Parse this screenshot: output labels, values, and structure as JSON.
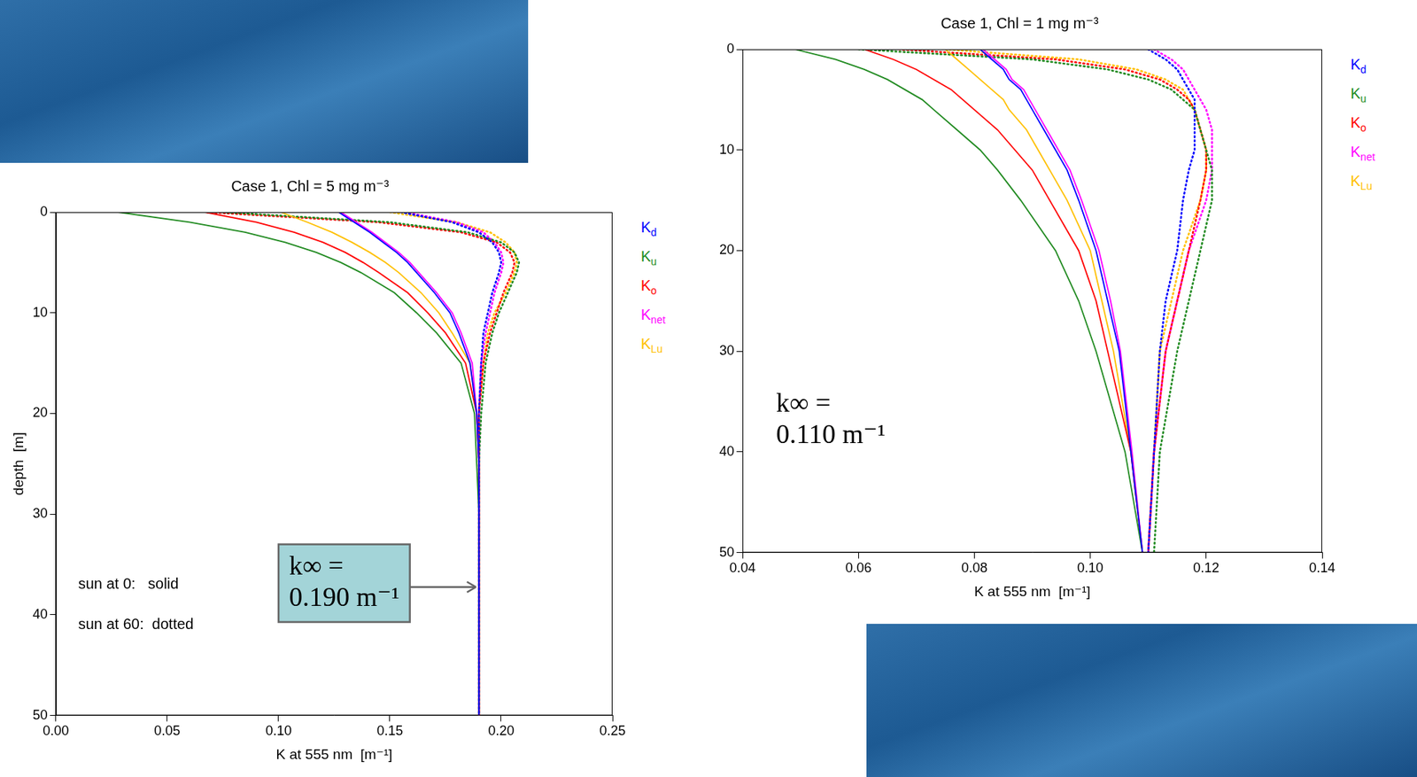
{
  "chart_data": [
    {
      "type": "line",
      "title": "Case 1, Chl = 5 mg m⁻³",
      "x_label": "K at 555 nm  [m⁻¹]",
      "y_label": "depth  [m]",
      "legend": "right",
      "grid": false,
      "legend_note": [
        "sun at 0:   solid",
        "sun at 60:  dotted"
      ],
      "annotation": "k∞ = 0.190 m⁻¹",
      "xlim": [
        0,
        0.25
      ],
      "xticks": [
        {
          "value": 0,
          "label": "0.00"
        },
        {
          "value": 0.05,
          "label": "0.05"
        },
        {
          "value": 0.1,
          "label": "0.10"
        },
        {
          "value": 0.15,
          "label": "0.15"
        },
        {
          "value": 0.2,
          "label": "0.20"
        },
        {
          "value": 0.25,
          "label": "0.25"
        }
      ],
      "ylim": [
        0,
        50
      ],
      "yticks": [
        0,
        10,
        20,
        30,
        40,
        50
      ],
      "y": [
        0,
        1,
        2,
        3,
        4,
        5,
        6,
        8,
        10,
        12,
        15,
        20,
        25,
        30,
        40,
        50
      ],
      "series": [
        {
          "name": "Kd",
          "color": "#0000ff",
          "line_style": "solid",
          "values": [
            0.127,
            0.134,
            0.141,
            0.147,
            0.153,
            0.158,
            0.162,
            0.17,
            0.177,
            0.181,
            0.186,
            0.189,
            0.19,
            0.19,
            0.19,
            0.19
          ]
        },
        {
          "name": "Ku",
          "color": "#228b22",
          "line_style": "solid",
          "values": [
            0.028,
            0.06,
            0.085,
            0.103,
            0.117,
            0.128,
            0.137,
            0.152,
            0.162,
            0.171,
            0.182,
            0.188,
            0.189,
            0.19,
            0.19,
            0.19
          ]
        },
        {
          "name": "Ko",
          "color": "#ff0000",
          "line_style": "solid",
          "values": [
            0.067,
            0.09,
            0.107,
            0.12,
            0.13,
            0.138,
            0.145,
            0.158,
            0.167,
            0.175,
            0.184,
            0.189,
            0.19,
            0.19,
            0.19,
            0.19
          ]
        },
        {
          "name": "Knet",
          "color": "#ff00ff",
          "line_style": "solid",
          "values": [
            0.128,
            0.135,
            0.142,
            0.148,
            0.154,
            0.159,
            0.163,
            0.171,
            0.178,
            0.182,
            0.187,
            0.189,
            0.19,
            0.19,
            0.19,
            0.19
          ]
        },
        {
          "name": "KLu",
          "color": "#ffc000",
          "line_style": "solid",
          "values": [
            0.101,
            0.113,
            0.124,
            0.133,
            0.141,
            0.148,
            0.154,
            0.164,
            0.172,
            0.178,
            0.186,
            0.189,
            0.19,
            0.19,
            0.19,
            0.19
          ]
        },
        {
          "name": "Kd",
          "color": "#0000ff",
          "line_style": "dotted",
          "values": [
            0.155,
            0.178,
            0.19,
            0.196,
            0.199,
            0.2,
            0.199,
            0.196,
            0.194,
            0.192,
            0.191,
            0.19,
            0.19,
            0.19,
            0.19,
            0.19
          ]
        },
        {
          "name": "Ku",
          "color": "#228b22",
          "line_style": "dotted",
          "values": [
            0.075,
            0.15,
            0.185,
            0.2,
            0.206,
            0.208,
            0.207,
            0.203,
            0.199,
            0.196,
            0.193,
            0.191,
            0.19,
            0.19,
            0.19,
            0.19
          ]
        },
        {
          "name": "Ko",
          "color": "#ff0000",
          "line_style": "dotted",
          "values": [
            0.068,
            0.145,
            0.182,
            0.198,
            0.204,
            0.206,
            0.205,
            0.201,
            0.198,
            0.195,
            0.192,
            0.19,
            0.19,
            0.19,
            0.19,
            0.19
          ]
        },
        {
          "name": "Knet",
          "color": "#ff00ff",
          "line_style": "dotted",
          "values": [
            0.157,
            0.18,
            0.192,
            0.197,
            0.2,
            0.201,
            0.2,
            0.197,
            0.195,
            0.193,
            0.191,
            0.19,
            0.19,
            0.19,
            0.19,
            0.19
          ]
        },
        {
          "name": "KLu",
          "color": "#ffc000",
          "line_style": "dotted",
          "values": [
            0.15,
            0.18,
            0.195,
            0.202,
            0.206,
            0.207,
            0.206,
            0.202,
            0.197,
            0.194,
            0.192,
            0.19,
            0.19,
            0.19,
            0.19,
            0.19
          ]
        }
      ]
    },
    {
      "type": "line",
      "title": "Case 1, Chl = 1 mg m⁻³",
      "x_label": "K at 555 nm  [m⁻¹]",
      "legend": "right",
      "grid": false,
      "annotation": "k∞ = 0.110 m⁻¹",
      "xlim": [
        0.04,
        0.14
      ],
      "xticks": [
        {
          "value": 0.04,
          "label": "0.04"
        },
        {
          "value": 0.06,
          "label": "0.06"
        },
        {
          "value": 0.08,
          "label": "0.08"
        },
        {
          "value": 0.1,
          "label": "0.10"
        },
        {
          "value": 0.12,
          "label": "0.12"
        },
        {
          "value": 0.14,
          "label": "0.14"
        }
      ],
      "ylim": [
        0,
        50
      ],
      "yticks": [
        0,
        10,
        20,
        30,
        40,
        50
      ],
      "y": [
        0,
        1,
        2,
        3,
        4,
        5,
        6,
        8,
        10,
        12,
        15,
        20,
        25,
        30,
        40,
        50
      ],
      "series": [
        {
          "name": "Kd",
          "color": "#0000ff",
          "line_style": "solid",
          "values": [
            0.081,
            0.083,
            0.085,
            0.086,
            0.088,
            0.089,
            0.09,
            0.092,
            0.094,
            0.096,
            0.098,
            0.101,
            0.103,
            0.105,
            0.107,
            0.109
          ]
        },
        {
          "name": "Ku",
          "color": "#228b22",
          "line_style": "solid",
          "values": [
            0.049,
            0.056,
            0.061,
            0.065,
            0.068,
            0.071,
            0.073,
            0.077,
            0.081,
            0.084,
            0.088,
            0.094,
            0.098,
            0.101,
            0.106,
            0.109
          ]
        },
        {
          "name": "Ko",
          "color": "#ff0000",
          "line_style": "solid",
          "values": [
            0.061,
            0.066,
            0.07,
            0.073,
            0.076,
            0.078,
            0.08,
            0.084,
            0.087,
            0.09,
            0.093,
            0.098,
            0.101,
            0.103,
            0.107,
            0.109
          ]
        },
        {
          "name": "Knet",
          "color": "#ff00ff",
          "line_style": "solid",
          "values": [
            0.0815,
            0.0835,
            0.0855,
            0.0865,
            0.0885,
            0.0895,
            0.0905,
            0.0925,
            0.0945,
            0.0965,
            0.0985,
            0.1015,
            0.1035,
            0.1052,
            0.1072,
            0.109
          ]
        },
        {
          "name": "KLu",
          "color": "#ffc000",
          "line_style": "solid",
          "values": [
            0.075,
            0.077,
            0.079,
            0.081,
            0.083,
            0.085,
            0.086,
            0.089,
            0.091,
            0.093,
            0.096,
            0.1,
            0.102,
            0.104,
            0.107,
            0.109
          ]
        },
        {
          "name": "Kd",
          "color": "#0000ff",
          "line_style": "dotted",
          "values": [
            0.11,
            0.113,
            0.115,
            0.116,
            0.117,
            0.118,
            0.118,
            0.118,
            0.118,
            0.117,
            0.116,
            0.115,
            0.113,
            0.112,
            0.111,
            0.11
          ]
        },
        {
          "name": "Ku",
          "color": "#228b22",
          "line_style": "dotted",
          "values": [
            0.06,
            0.09,
            0.103,
            0.11,
            0.114,
            0.116,
            0.118,
            0.119,
            0.12,
            0.121,
            0.121,
            0.119,
            0.117,
            0.115,
            0.112,
            0.111
          ]
        },
        {
          "name": "Ko",
          "color": "#ff0000",
          "line_style": "dotted",
          "values": [
            0.067,
            0.094,
            0.106,
            0.112,
            0.115,
            0.117,
            0.118,
            0.119,
            0.12,
            0.12,
            0.119,
            0.117,
            0.115,
            0.113,
            0.111,
            0.11
          ]
        },
        {
          "name": "Knet",
          "color": "#ff00ff",
          "line_style": "dotted",
          "values": [
            0.111,
            0.114,
            0.116,
            0.117,
            0.118,
            0.119,
            0.12,
            0.121,
            0.121,
            0.121,
            0.12,
            0.117,
            0.115,
            0.113,
            0.111,
            0.11
          ]
        },
        {
          "name": "KLu",
          "color": "#ffc000",
          "line_style": "dotted",
          "values": [
            0.075,
            0.098,
            0.108,
            0.113,
            0.116,
            0.117,
            0.118,
            0.119,
            0.12,
            0.12,
            0.119,
            0.116,
            0.114,
            0.112,
            0.111,
            0.11
          ]
        }
      ]
    }
  ]
}
